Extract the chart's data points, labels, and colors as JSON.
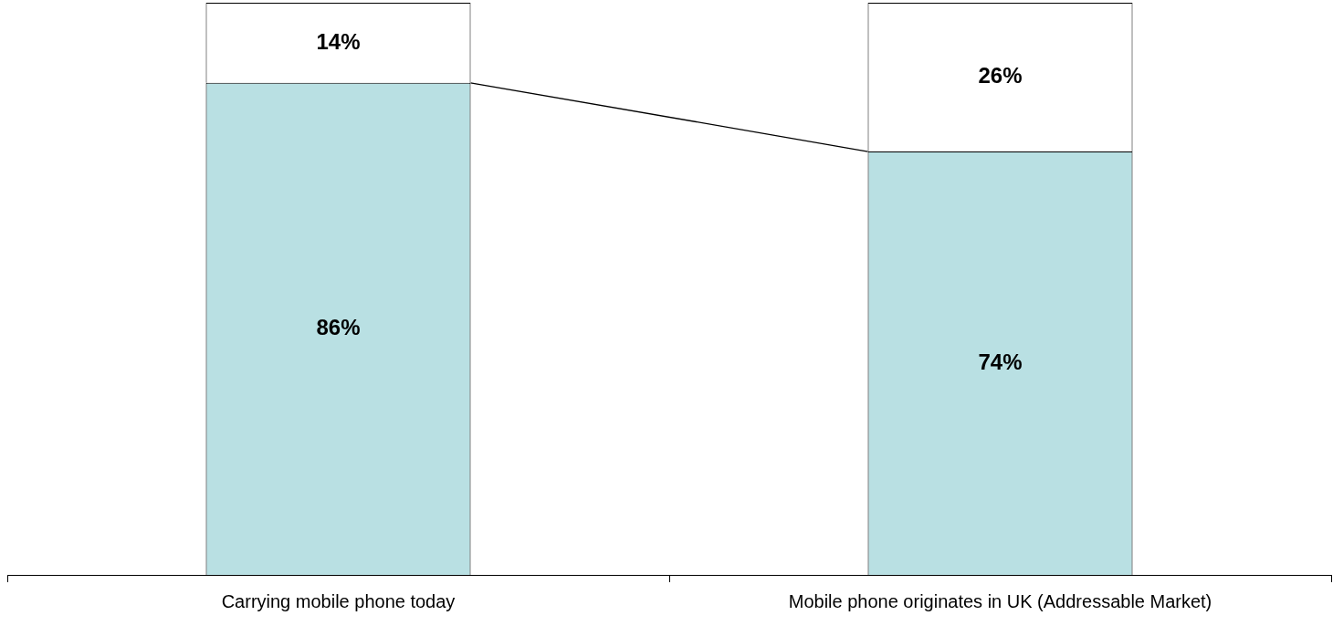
{
  "chart_data": {
    "type": "bar",
    "stacked": true,
    "categories": [
      "Carrying mobile phone today",
      "Mobile phone originates in UK (Addressable Market)"
    ],
    "series": [
      {
        "color": "#b9e0e3",
        "values": [
          86,
          74
        ],
        "value_labels": [
          "86%",
          "74%"
        ]
      },
      {
        "color": "#ffffff",
        "values": [
          14,
          26
        ],
        "value_labels": [
          "14%",
          "26%"
        ]
      }
    ],
    "ylim": [
      0,
      100
    ],
    "tick_labels": "x",
    "grid": false,
    "legend": false
  }
}
